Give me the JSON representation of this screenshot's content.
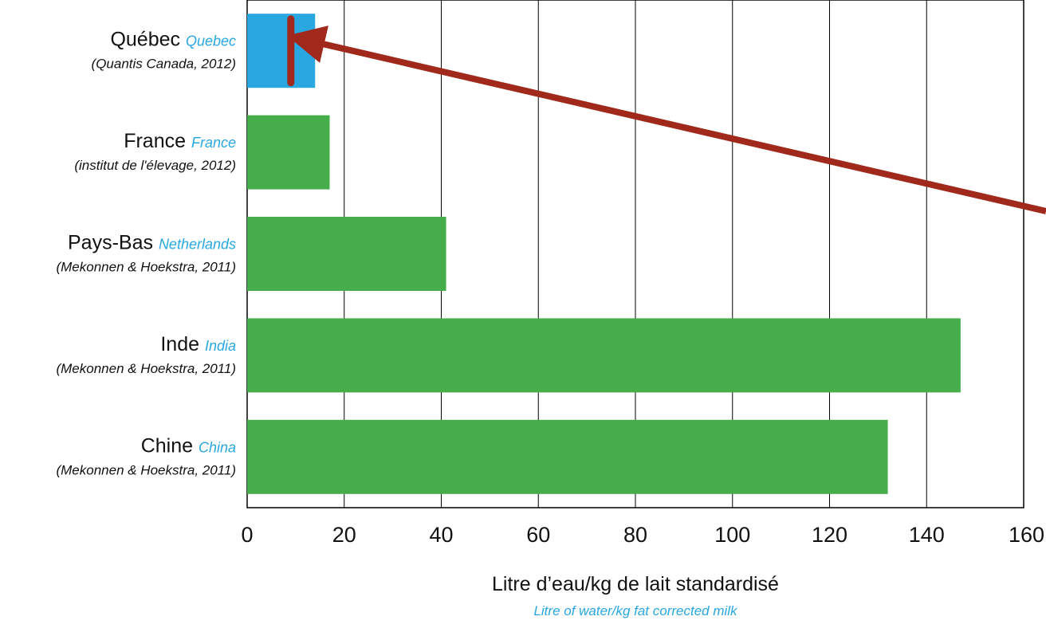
{
  "colors": {
    "primary_bar": "#45ad4a",
    "highlight_bar": "#29a7e1",
    "english_label": "#29a7e1",
    "annotation": "#a1291b",
    "grid": "#000000",
    "text": "#111111"
  },
  "chart_data": {
    "type": "bar",
    "orientation": "horizontal",
    "categories": [
      {
        "label_fr": "Québec",
        "label_en": "Quebec",
        "source": "(Quantis Canada, 2012)",
        "value": 14,
        "highlight": true
      },
      {
        "label_fr": "France",
        "label_en": "France",
        "source": "(institut de l'élevage, 2012)",
        "value": 17,
        "highlight": false
      },
      {
        "label_fr": "Pays-Bas",
        "label_en": "Netherlands",
        "source": "(Mekonnen & Hoekstra, 2011)",
        "value": 41,
        "highlight": false
      },
      {
        "label_fr": "Inde",
        "label_en": "India",
        "source": "(Mekonnen & Hoekstra, 2011)",
        "value": 147,
        "highlight": false
      },
      {
        "label_fr": "Chine",
        "label_en": "China",
        "source": "(Mekonnen & Hoekstra, 2011)",
        "value": 132,
        "highlight": false
      }
    ],
    "xlim": [
      0,
      160
    ],
    "xticks": [
      "0",
      "20",
      "40",
      "60",
      "80",
      "100",
      "120",
      "140",
      "160"
    ],
    "xlabel_fr": "Litre d’eau/kg de lait standardisé",
    "xlabel_en": "Litre of water/kg fat corrected milk",
    "grid": "vertical",
    "annotation": {
      "type": "arrow-with-marker",
      "marker_value": 9,
      "target_category": 0
    }
  }
}
